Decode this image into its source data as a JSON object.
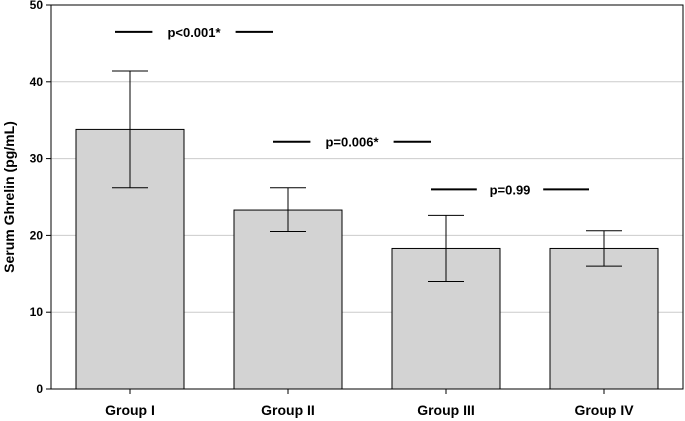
{
  "chart_data": {
    "type": "bar",
    "categories": [
      "Group I",
      "Group II",
      "Group III",
      "Group IV"
    ],
    "values": [
      33.8,
      23.3,
      18.3,
      18.3
    ],
    "error_low": [
      26.2,
      20.5,
      14.0,
      16.0
    ],
    "error_high": [
      41.4,
      26.2,
      22.6,
      20.6
    ],
    "title": "",
    "xlabel": "",
    "ylabel": "Serum Ghrelin (pg/mL)",
    "ylim": [
      0,
      50
    ],
    "yticks": [
      0,
      10,
      20,
      30,
      40,
      50
    ],
    "grid": true,
    "legend": "none",
    "bar_color": "#d3d3d3",
    "annotations": [
      {
        "text": "p<0.001*",
        "from": "Group I",
        "to": "Group II",
        "y": 46.5
      },
      {
        "text": "p=0.006*",
        "from": "Group II",
        "to": "Group III",
        "y": 32.2
      },
      {
        "text": "p=0.99",
        "from": "Group III",
        "to": "Group IV",
        "y": 26.0
      }
    ]
  }
}
